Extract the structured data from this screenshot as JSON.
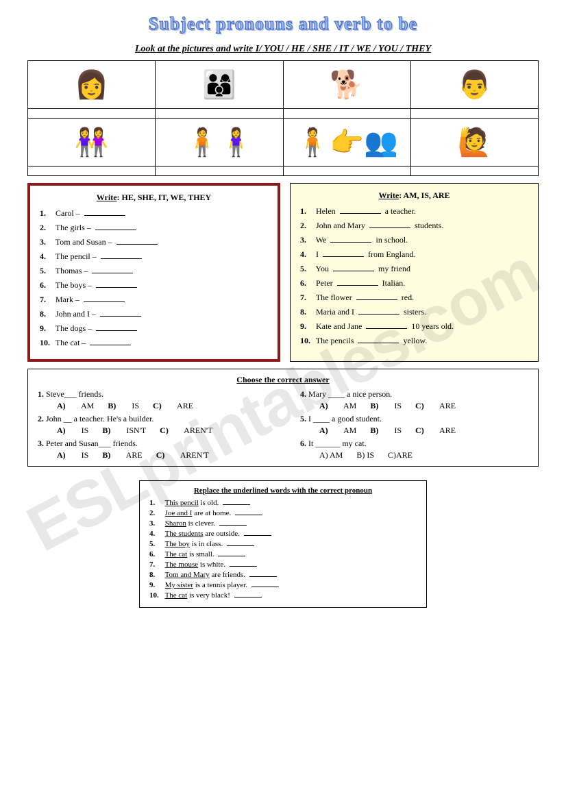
{
  "title": "Subject pronouns and verb to be",
  "watermark": "ESLprintables.com",
  "ex1": {
    "instr": "Look at the pictures and write I/ YOU / HE / SHE / IT / WE / YOU / THEY",
    "row1": [
      "👩",
      "👨‍👩‍👦",
      "🐕",
      "👨"
    ],
    "row2": [
      "👭",
      "🧍🧍‍♀️",
      "🧍👉👥",
      "🙋"
    ]
  },
  "ex2": {
    "title_pre": "Write",
    "title_u": ": HE, SHE, IT, WE, THEY",
    "items": [
      "Carol – ",
      "The girls – ",
      "Tom and Susan – ",
      "The pencil – ",
      "Thomas – ",
      "The boys – ",
      "Mark – ",
      "John and I – ",
      "The dogs – ",
      "The cat – "
    ]
  },
  "ex3": {
    "title_pre": "Write",
    "title_u": ": AM, IS, ARE",
    "items": [
      {
        "a": "Helen ",
        "b": " a teacher."
      },
      {
        "a": "John and Mary ",
        "b": " students."
      },
      {
        "a": "We ",
        "b": " in school."
      },
      {
        "a": "I ",
        "b": " from England."
      },
      {
        "a": "You ",
        "b": " my friend"
      },
      {
        "a": "Peter ",
        "b": " Italian."
      },
      {
        "a": "The flower ",
        "b": " red."
      },
      {
        "a": "Maria and I ",
        "b": " sisters."
      },
      {
        "a": "Kate and Jane ",
        "b": " 10 years old."
      },
      {
        "a": "The pencils ",
        "b": " yellow."
      }
    ]
  },
  "ex4": {
    "title": "Choose the correct answer",
    "left": [
      {
        "n": "1.",
        "q": "Steve___ friends.",
        "a": "AM",
        "b": "IS",
        "c": "ARE"
      },
      {
        "n": "2.",
        "q": "John __ a teacher. He's  a builder.",
        "a": "IS",
        "b": "ISN'T",
        "c": "AREN'T"
      },
      {
        "n": "3.",
        "q": "Peter and Susan___ friends.",
        "a": "IS",
        "b": "ARE",
        "c": "AREN'T"
      }
    ],
    "right": [
      {
        "n": "4.",
        "q": "Mary ____ a nice person.",
        "a": "AM",
        "b": "IS",
        "c": "ARE"
      },
      {
        "n": "5.",
        "q": "I ____ a good student.",
        "a": "AM",
        "b": "IS",
        "c": "ARE"
      },
      {
        "n": "6.",
        "q": "It ______ my cat.",
        "a": "AM",
        "b": "IS",
        "c": "ARE",
        "plain": true
      }
    ]
  },
  "ex5": {
    "title": "Replace the underlined words with the correct pronoun",
    "items": [
      {
        "u": "This pencil",
        "r": " is old. "
      },
      {
        "u": "Joe and I",
        "r": " are at home. "
      },
      {
        "u": "Sharon",
        "r": " is clever.   "
      },
      {
        "u": "The students",
        "r": " are outside. "
      },
      {
        "u": "The boy",
        "r": " is in class. "
      },
      {
        "u": "The cat",
        "r": " is small.   "
      },
      {
        "u": "The mouse",
        "r": " is white. "
      },
      {
        "u": "Tom and Mary",
        "r": " are friends. "
      },
      {
        "u": "My sister",
        "r": " is a tennis player. "
      },
      {
        "u": "The cat",
        "r": " is very black! "
      }
    ]
  }
}
